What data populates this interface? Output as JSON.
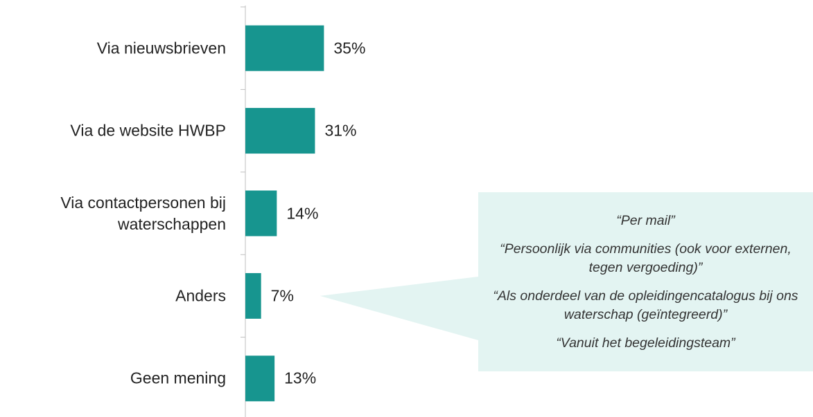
{
  "chart_data": {
    "type": "bar",
    "orientation": "horizontal",
    "categories": [
      "Via nieuwsbrieven",
      "Via de website HWBP",
      "Via contactpersonen bij waterschappen",
      "Anders",
      "Geen mening"
    ],
    "values": [
      35,
      31,
      14,
      7,
      13
    ],
    "value_labels": [
      "35%",
      "31%",
      "14%",
      "7%",
      "13%"
    ],
    "color": "#17958f",
    "annotation": {
      "category_index": 3,
      "color": "#e3f4f2",
      "quotes": [
        "“Per mail”",
        "“Persoonlijk via communities (ook voor externen, tegen vergoeding)”",
        "“Als onderdeel van de opleidingencatalogus bij ons waterschap (geïntegreerd)”",
        "“Vanuit het begeleidingsteam”"
      ]
    }
  }
}
